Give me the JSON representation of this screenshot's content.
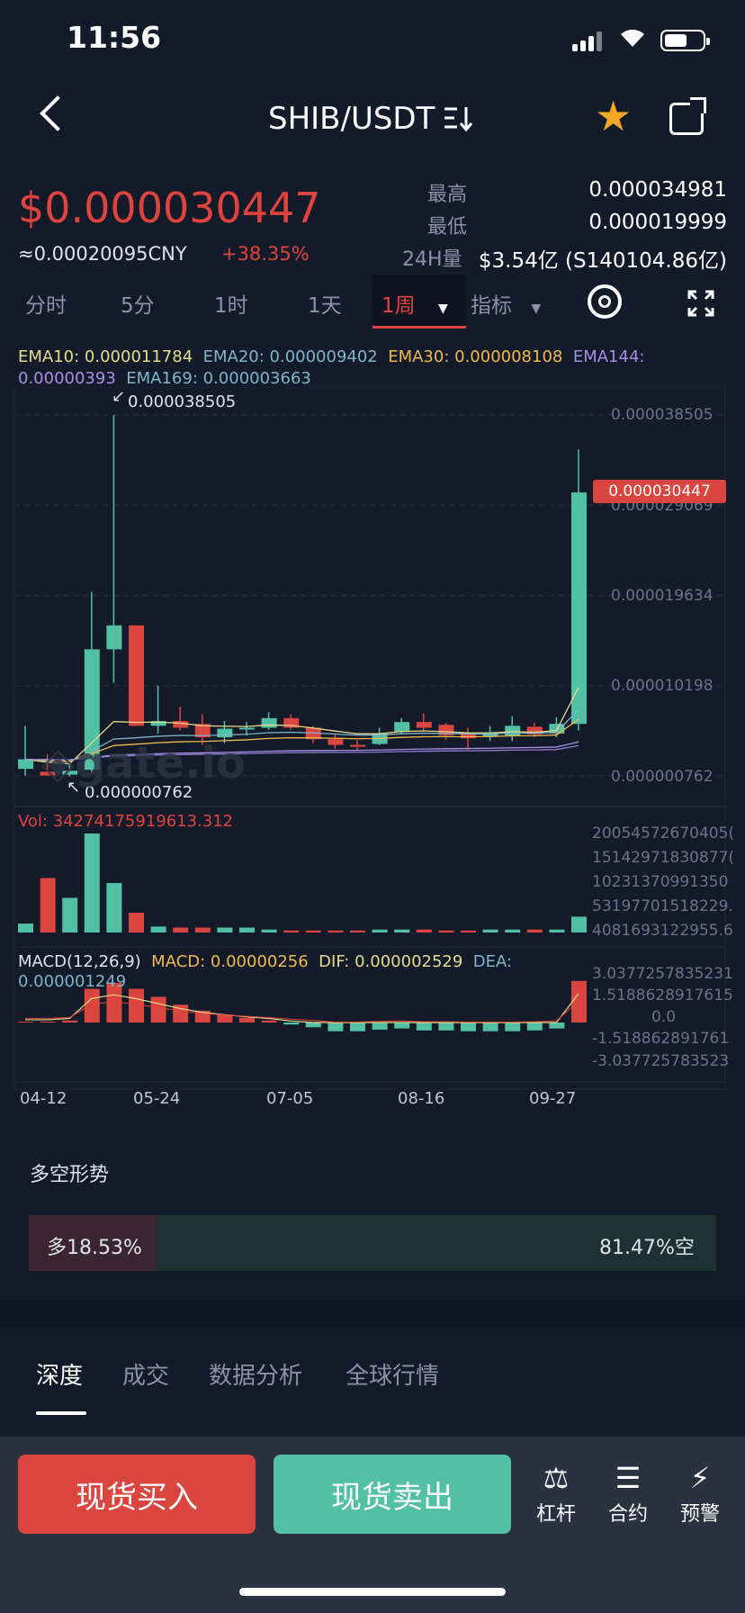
{
  "status": {
    "time": "11:56"
  },
  "header": {
    "pair": "SHIB/USDT",
    "swap_icon": "sort-arrows-icon",
    "favorite_icon": "star-icon",
    "share_icon": "share-icon"
  },
  "ticker": {
    "price": "$0.000030447",
    "cny": "≈0.00020095CNY",
    "change": "+38.35%",
    "high_label": "最高",
    "high_value": "0.000034981",
    "low_label": "最低",
    "low_value": "0.000019999",
    "vol_label": "24H量",
    "vol_value": "$3.54亿 (S140104.86亿)"
  },
  "timeframes": {
    "items": [
      "分时",
      "5分",
      "1时",
      "1天"
    ],
    "active": "1周",
    "indicator": "指标"
  },
  "ema": {
    "ema10": "EMA10: 0.000011784",
    "ema20": "EMA20: 0.000009402",
    "ema30": "EMA30: 0.000008108",
    "ema144": "EMA144:",
    "ema144_val": "0.00000393",
    "ema169": "EMA169: 0.000003663"
  },
  "chart_data": {
    "type": "candlestick",
    "y_ticks": [
      "0.000038505",
      "0.000029069",
      "0.000019634",
      "0.000010198",
      "0.000000762"
    ],
    "current_price_tag": "0.000030447",
    "max_label": "0.000038505",
    "min_label": "0.000000762",
    "x_ticks": [
      "04-12",
      "05-24",
      "07-05",
      "08-16",
      "09-27"
    ],
    "candles": [
      {
        "o": 1.5e-06,
        "h": 6e-06,
        "l": 8e-07,
        "c": 2.5e-06
      },
      {
        "o": 1.2e-06,
        "h": 3e-06,
        "l": 8e-07,
        "c": 8e-07
      },
      {
        "o": 9e-07,
        "h": 2e-06,
        "l": 7e-07,
        "c": 1.3e-06
      },
      {
        "o": 1.4e-06,
        "h": 2e-05,
        "l": 1e-06,
        "c": 1.4e-05
      },
      {
        "o": 1.4e-05,
        "h": 3.85e-05,
        "l": 1.05e-05,
        "c": 1.65e-05
      },
      {
        "o": 1.65e-05,
        "h": 1.65e-05,
        "l": 6e-06,
        "c": 6e-06
      },
      {
        "o": 6e-06,
        "h": 1.02e-05,
        "l": 5.2e-06,
        "c": 6.5e-06
      },
      {
        "o": 6.5e-06,
        "h": 8e-06,
        "l": 5.5e-06,
        "c": 5.8e-06
      },
      {
        "o": 6.2e-06,
        "h": 7.2e-06,
        "l": 4e-06,
        "c": 4.8e-06
      },
      {
        "o": 4.8e-06,
        "h": 6.5e-06,
        "l": 4.2e-06,
        "c": 5.7e-06
      },
      {
        "o": 5.7e-06,
        "h": 6.4e-06,
        "l": 5e-06,
        "c": 5.8e-06
      },
      {
        "o": 5.8e-06,
        "h": 7.4e-06,
        "l": 5.6e-06,
        "c": 6.8e-06
      },
      {
        "o": 6.8e-06,
        "h": 7.2e-06,
        "l": 5.6e-06,
        "c": 5.8e-06
      },
      {
        "o": 5.8e-06,
        "h": 6e-06,
        "l": 4.2e-06,
        "c": 4.6e-06
      },
      {
        "o": 4.6e-06,
        "h": 5.2e-06,
        "l": 3.6e-06,
        "c": 4e-06
      },
      {
        "o": 4e-06,
        "h": 4.5e-06,
        "l": 3.5e-06,
        "c": 3.9e-06
      },
      {
        "o": 4.1e-06,
        "h": 5.8e-06,
        "l": 4e-06,
        "c": 5.2e-06
      },
      {
        "o": 5.4e-06,
        "h": 6.8e-06,
        "l": 5.2e-06,
        "c": 6.4e-06
      },
      {
        "o": 6.4e-06,
        "h": 7.3e-06,
        "l": 5.4e-06,
        "c": 5.8e-06
      },
      {
        "o": 6.1e-06,
        "h": 6.3e-06,
        "l": 4.5e-06,
        "c": 5e-06
      },
      {
        "o": 5.2e-06,
        "h": 5.8e-06,
        "l": 3.5e-06,
        "c": 4.7e-06
      },
      {
        "o": 4.9e-06,
        "h": 6e-06,
        "l": 4.4e-06,
        "c": 5.2e-06
      },
      {
        "o": 4.9e-06,
        "h": 7e-06,
        "l": 4.4e-06,
        "c": 6e-06
      },
      {
        "o": 5.9e-06,
        "h": 6.3e-06,
        "l": 4.8e-06,
        "c": 5.1e-06
      },
      {
        "o": 5.2e-06,
        "h": 6.9e-06,
        "l": 4.8e-06,
        "c": 6.2e-06
      },
      {
        "o": 6.2e-06,
        "h": 3.49e-05,
        "l": 5.5e-06,
        "c": 3.04e-05
      }
    ],
    "volume": {
      "label": "Vol: 34274175919613.312",
      "ticks": [
        "20054572670405(",
        "15142971830877(",
        "10231370991350",
        "53197701518229.",
        "4081693122955.6"
      ],
      "values": [
        0.09,
        0.55,
        0.35,
        1.0,
        0.5,
        0.2,
        0.06,
        0.05,
        0.05,
        0.05,
        0.05,
        0.03,
        0.02,
        0.02,
        0.02,
        0.02,
        0.03,
        0.03,
        0.03,
        0.02,
        0.02,
        0.03,
        0.03,
        0.03,
        0.03,
        0.16
      ]
    },
    "macd": {
      "label": "MACD(12,26,9)",
      "macd": "MACD: 0.00000256",
      "dif": "DIF: 0.000002529",
      "dea": "DEA:",
      "dea_val": "0.000001249",
      "ticks": [
        "3.0377257835231",
        "1.5188628917615",
        "0.0",
        "-1.518862891761",
        "-3.037725783523"
      ],
      "hist": [
        0.0,
        0.0,
        0.05,
        0.85,
        1.0,
        0.85,
        0.65,
        0.45,
        0.3,
        0.2,
        0.12,
        0.05,
        -0.05,
        -0.12,
        -0.22,
        -0.22,
        -0.18,
        -0.15,
        -0.2,
        -0.2,
        -0.22,
        -0.22,
        -0.22,
        -0.2,
        -0.15,
        1.05
      ]
    }
  },
  "sentiment": {
    "title": "多空形势",
    "long": "多18.53%",
    "short": "81.47%空",
    "long_fraction": 0.1853
  },
  "tabs": [
    "深度",
    "成交",
    "数据分析",
    "全球行情"
  ],
  "actions": {
    "buy": "现货买入",
    "sell": "现货卖出",
    "leverage": "杠杆",
    "contract": "合约",
    "alert": "预警"
  },
  "colors": {
    "bg": "#131b2b",
    "up": "#52c0a3",
    "down": "#da4540",
    "ema10": "#e7dc8a",
    "ema20": "#7fb4c6",
    "ema30": "#f2b84e",
    "ema144": "#a98ee6"
  }
}
